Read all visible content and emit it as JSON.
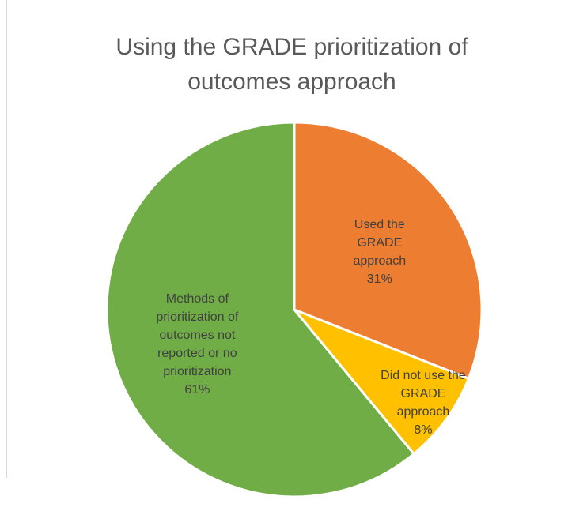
{
  "chart_data": {
    "type": "pie",
    "title": "Using the GRADE prioritization of outcomes approach",
    "categories": [
      "Used the GRADE approach",
      "Did not use the GRADE approach",
      "Methods of prioritization of outcomes not reported or no prioritization"
    ],
    "values": [
      31,
      8,
      61
    ],
    "value_labels": [
      "31%",
      "8%",
      "61%"
    ],
    "colors": [
      "#ED7D31",
      "#FFC000",
      "#70AD47"
    ]
  }
}
